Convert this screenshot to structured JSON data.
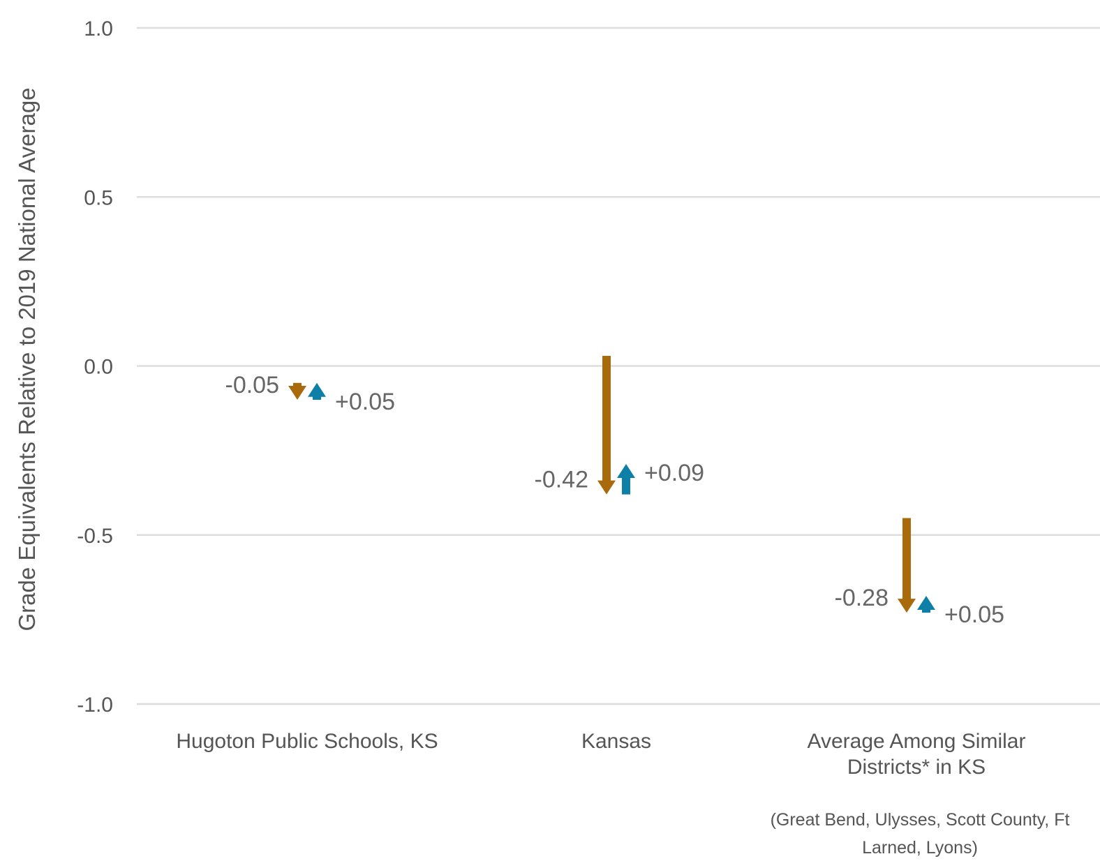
{
  "chart_data": {
    "type": "arrow",
    "ylabel": "Grade Equivalents Relative to 2019 National Average",
    "ylim": [
      -1.0,
      1.0
    ],
    "yticks": [
      "1.0",
      "0.5",
      "0.0",
      "-0.5",
      "-1.0"
    ],
    "ytick_values": [
      1.0,
      0.5,
      0.0,
      -0.5,
      -1.0
    ],
    "grid": true,
    "categories": [
      {
        "label_lines": [
          "Hugoton Public Schools, KS"
        ],
        "note_lines": []
      },
      {
        "label_lines": [
          "Kansas"
        ],
        "note_lines": []
      },
      {
        "label_lines": [
          "Average Among Similar",
          "Districts* in KS"
        ],
        "note_lines": [
          "(Great Bend, Ulysses, Scott County, Ft",
          "Larned, Lyons)"
        ]
      }
    ],
    "series": [
      {
        "color": "#a86a0b",
        "direction": "down",
        "values": [
          {
            "start": -0.05,
            "end": -0.1,
            "label": "-0.05"
          },
          {
            "start": 0.03,
            "end": -0.38,
            "label": "-0.42"
          },
          {
            "start": -0.45,
            "end": -0.73,
            "label": "-0.28"
          }
        ]
      },
      {
        "color": "#0e7fa6",
        "direction": "up",
        "values": [
          {
            "start": -0.1,
            "end": -0.05,
            "label": "+0.05"
          },
          {
            "start": -0.38,
            "end": -0.29,
            "label": "+0.09"
          },
          {
            "start": -0.73,
            "end": -0.68,
            "label": "+0.05"
          }
        ]
      }
    ]
  }
}
